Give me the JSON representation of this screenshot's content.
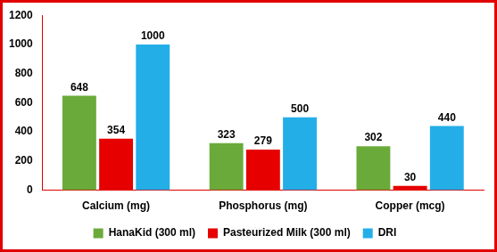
{
  "chart_data": {
    "type": "bar",
    "categories": [
      "Calcium (mg)",
      "Phosphorus (mg)",
      "Copper (mcg)"
    ],
    "series": [
      {
        "name": "HanaKid (300 ml)",
        "color": "#6aaa3a",
        "values": [
          648,
          323,
          302
        ]
      },
      {
        "name": "Pasteurized Milk (300 ml)",
        "color": "#e60000",
        "values": [
          354,
          279,
          30
        ]
      },
      {
        "name": "DRI",
        "color": "#23aee8",
        "values": [
          1000,
          500,
          440
        ]
      }
    ],
    "ylim": [
      0,
      1200
    ],
    "yticks": [
      0,
      200,
      400,
      600,
      800,
      1000,
      1200
    ],
    "grid": false,
    "legend": "bottom",
    "data_labels": true
  }
}
